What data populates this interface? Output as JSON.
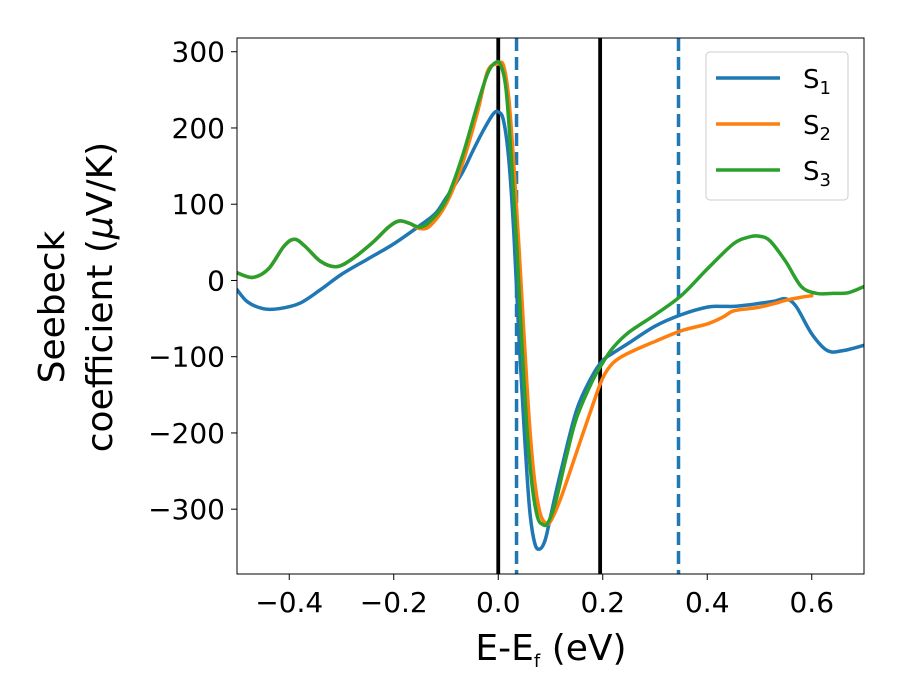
{
  "chart_data": {
    "type": "line",
    "title": "",
    "xlabel": {
      "main": "E-E",
      "sub": "f",
      "unit": " (eV)"
    },
    "ylabel": {
      "line1": "Seebeck",
      "line2_pre": "coefficient  (",
      "mu": "μ",
      "line2_post": "V/K)"
    },
    "xlim": [
      -0.5,
      0.7
    ],
    "ylim": [
      -385,
      318
    ],
    "xticks": [
      -0.4,
      -0.2,
      0.0,
      0.2,
      0.4,
      0.6
    ],
    "xtick_labels": [
      "−0.4",
      "−0.2",
      "0.0",
      "0.2",
      "0.4",
      "0.6"
    ],
    "yticks": [
      300,
      200,
      100,
      0,
      -100,
      -200,
      -300
    ],
    "ytick_labels": [
      "300",
      "200",
      "100",
      "0",
      "−100",
      "−200",
      "−300"
    ],
    "grid": false,
    "legend_position": "top-right",
    "vlines": [
      {
        "x": 0.0,
        "style": "solid",
        "color": "#000000"
      },
      {
        "x": 0.195,
        "style": "solid",
        "color": "#000000"
      },
      {
        "x": 0.035,
        "style": "dashed",
        "color": "#1f77b4"
      },
      {
        "x": 0.345,
        "style": "dashed",
        "color": "#1f77b4"
      }
    ],
    "series": [
      {
        "name": "S",
        "sub": "1",
        "color": "#1f77b4",
        "x": [
          -0.5,
          -0.48,
          -0.45,
          -0.42,
          -0.38,
          -0.34,
          -0.3,
          -0.25,
          -0.2,
          -0.15,
          -0.12,
          -0.1,
          -0.07,
          -0.05,
          -0.03,
          -0.01,
          0.0,
          0.01,
          0.02,
          0.03,
          0.04,
          0.05,
          0.06,
          0.07,
          0.08,
          0.09,
          0.1,
          0.12,
          0.15,
          0.18,
          0.2,
          0.22,
          0.25,
          0.3,
          0.35,
          0.4,
          0.43,
          0.45,
          0.48,
          0.5,
          0.53,
          0.55,
          0.57,
          0.6,
          0.63,
          0.66,
          0.7
        ],
        "y": [
          -12,
          -28,
          -37,
          -37,
          -30,
          -12,
          8,
          28,
          48,
          72,
          88,
          108,
          140,
          168,
          195,
          218,
          221,
          210,
          160,
          60,
          -80,
          -200,
          -300,
          -345,
          -352,
          -340,
          -310,
          -250,
          -170,
          -125,
          -105,
          -95,
          -82,
          -60,
          -45,
          -35,
          -34,
          -34,
          -32,
          -30,
          -27,
          -24,
          -34,
          -70,
          -92,
          -92,
          -85
        ]
      },
      {
        "name": "S",
        "sub": "2",
        "color": "#ff7f0e",
        "x": [
          -0.5,
          -0.47,
          -0.44,
          -0.41,
          -0.39,
          -0.37,
          -0.34,
          -0.31,
          -0.28,
          -0.24,
          -0.21,
          -0.19,
          -0.17,
          -0.15,
          -0.13,
          -0.1,
          -0.07,
          -0.04,
          -0.02,
          0.0,
          0.01,
          0.02,
          0.03,
          0.04,
          0.05,
          0.06,
          0.07,
          0.08,
          0.09,
          0.1,
          0.12,
          0.15,
          0.18,
          0.2,
          0.22,
          0.25,
          0.3,
          0.35,
          0.4,
          0.43,
          0.45,
          0.48,
          0.5,
          0.53,
          0.55,
          0.58,
          0.6
        ],
        "y": [
          10,
          4,
          15,
          45,
          54,
          45,
          25,
          18,
          28,
          50,
          70,
          78,
          75,
          68,
          72,
          100,
          150,
          220,
          275,
          284,
          282,
          240,
          150,
          40,
          -80,
          -190,
          -265,
          -305,
          -318,
          -316,
          -285,
          -225,
          -165,
          -128,
          -108,
          -95,
          -80,
          -66,
          -57,
          -48,
          -40,
          -37,
          -35,
          -30,
          -26,
          -22,
          -20
        ]
      },
      {
        "name": "S",
        "sub": "3",
        "color": "#2ca02c",
        "x": [
          -0.5,
          -0.47,
          -0.44,
          -0.41,
          -0.39,
          -0.37,
          -0.34,
          -0.31,
          -0.28,
          -0.24,
          -0.21,
          -0.19,
          -0.17,
          -0.15,
          -0.13,
          -0.1,
          -0.07,
          -0.04,
          -0.02,
          -0.005,
          0.005,
          0.015,
          0.025,
          0.035,
          0.045,
          0.055,
          0.065,
          0.075,
          0.085,
          0.095,
          0.11,
          0.13,
          0.15,
          0.18,
          0.2,
          0.22,
          0.25,
          0.3,
          0.35,
          0.4,
          0.45,
          0.48,
          0.5,
          0.52,
          0.55,
          0.58,
          0.61,
          0.64,
          0.67,
          0.7
        ],
        "y": [
          10,
          4,
          15,
          45,
          54,
          45,
          25,
          18,
          28,
          50,
          70,
          78,
          75,
          70,
          78,
          105,
          160,
          230,
          272,
          286,
          282,
          250,
          160,
          50,
          -80,
          -195,
          -270,
          -310,
          -320,
          -318,
          -290,
          -232,
          -180,
          -132,
          -108,
          -88,
          -68,
          -45,
          -20,
          15,
          48,
          57,
          58,
          52,
          25,
          -8,
          -17,
          -17,
          -16,
          -8
        ]
      }
    ]
  }
}
